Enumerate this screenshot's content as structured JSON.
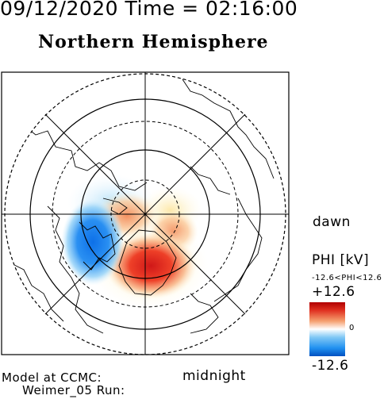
{
  "header": {
    "datetime": "09/12/2020 Time = 02:16:00",
    "hemisphere": "Northern Hemisphere"
  },
  "map": {
    "dawn_label": "dawn",
    "midnight_label": "midnight",
    "positive_region_color": "#e02020",
    "negative_region_color": "#1a7ff0"
  },
  "model_info": {
    "line1": "Model at CCMC:",
    "line2": "Weimer_05 Run:"
  },
  "colorbar": {
    "title": "PHI [kV]",
    "range_text": "-12.6<PHI<12.6",
    "max_label": "+12.6",
    "mid_label": "0",
    "min_label": "-12.6",
    "max_value": 12.6,
    "min_value": -12.6
  }
}
